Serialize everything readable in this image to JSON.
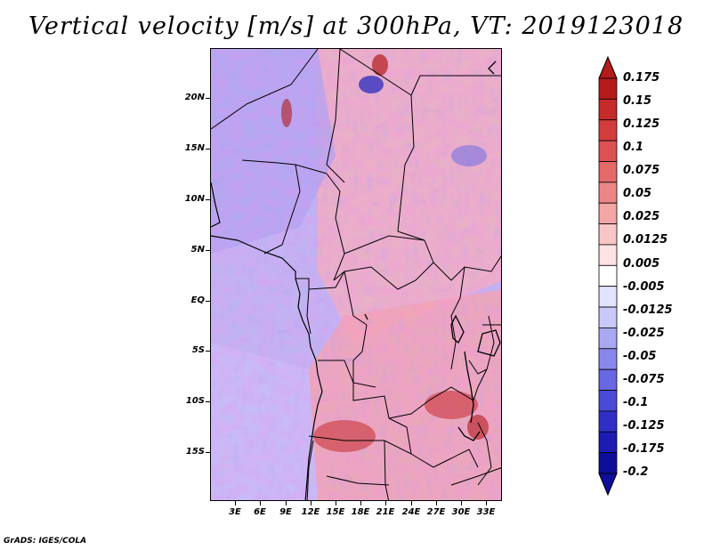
{
  "title": "Vertical velocity [m/s] at 300hPa, VT: 2019123018",
  "map": {
    "latitude_labels": [
      "20N",
      "15N",
      "10N",
      "5N",
      "EQ",
      "5S",
      "10S",
      "15S"
    ],
    "longitude_labels": [
      "3E",
      "6E",
      "9E",
      "12E",
      "15E",
      "18E",
      "21E",
      "24E",
      "27E",
      "30E",
      "33E"
    ]
  },
  "colorbar": {
    "labels": [
      "0.175",
      "0.15",
      "0.125",
      "0.1",
      "0.075",
      "0.05",
      "0.025",
      "0.0125",
      "0.005",
      "-0.005",
      "-0.0125",
      "-0.025",
      "-0.05",
      "-0.075",
      "-0.1",
      "-0.125",
      "-0.175",
      "-0.2"
    ],
    "colors": [
      "#b41b1b",
      "#c62a2a",
      "#d23c3c",
      "#dc5252",
      "#e46a6a",
      "#ec8686",
      "#f4a6a6",
      "#f9c6c6",
      "#fde3e3",
      "#ffffff",
      "#e3e3fd",
      "#c9c9f9",
      "#a9a9f3",
      "#8888ec",
      "#6868e2",
      "#4a4ad6",
      "#2f2fc6",
      "#1c1cb2",
      "#0e0e9a"
    ]
  },
  "credit": "GrADS: IGES/COLA"
}
